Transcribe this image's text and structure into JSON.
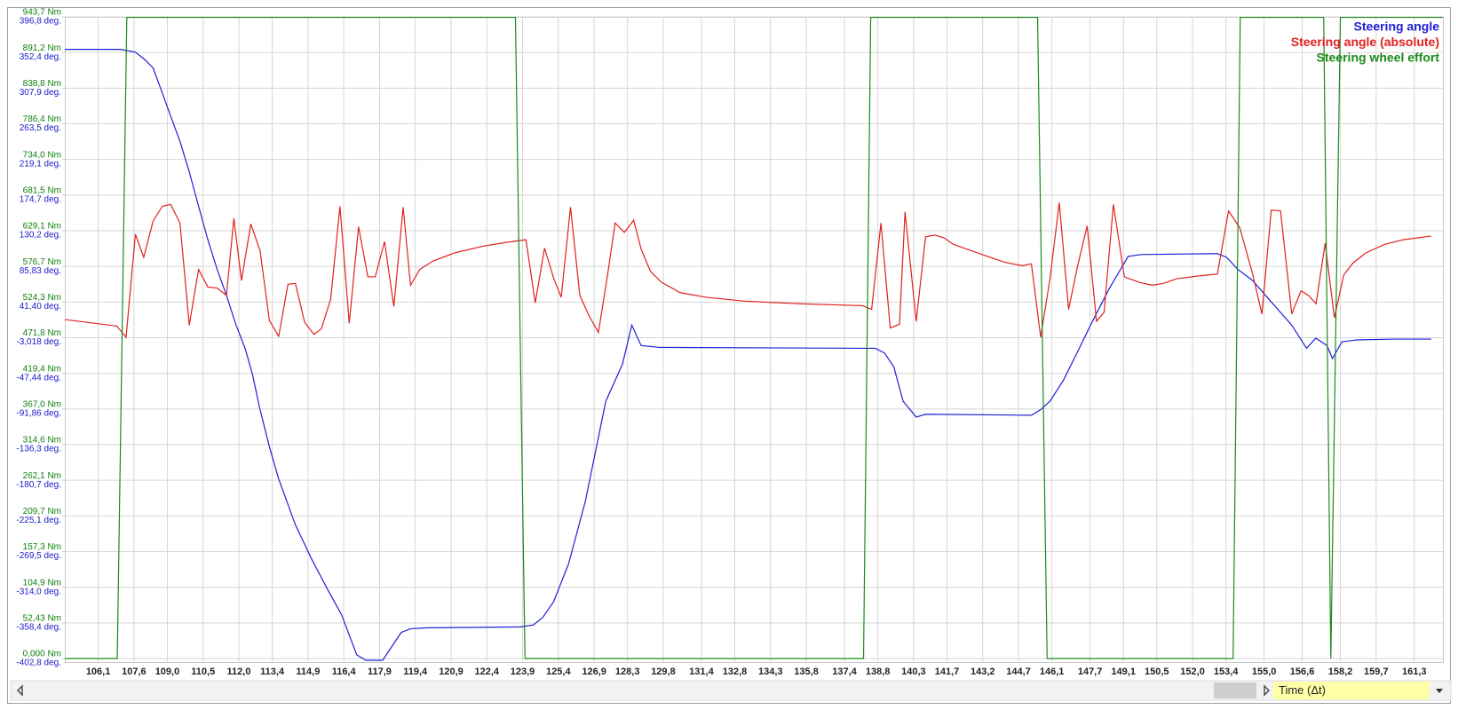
{
  "chart_data": {
    "type": "line",
    "xlabel": "Time (Δt)",
    "xlim": [
      104.7,
      162.5
    ],
    "xticks": [
      {
        "value": 106.1,
        "label": "106,1"
      },
      {
        "value": 107.6,
        "label": "107,6"
      },
      {
        "value": 109.0,
        "label": "109,0"
      },
      {
        "value": 110.5,
        "label": "110,5"
      },
      {
        "value": 112.0,
        "label": "112,0"
      },
      {
        "value": 113.4,
        "label": "113,4"
      },
      {
        "value": 114.9,
        "label": "114,9"
      },
      {
        "value": 116.4,
        "label": "116,4"
      },
      {
        "value": 117.9,
        "label": "117,9"
      },
      {
        "value": 119.4,
        "label": "119,4"
      },
      {
        "value": 120.9,
        "label": "120,9"
      },
      {
        "value": 122.4,
        "label": "122,4"
      },
      {
        "value": 123.9,
        "label": "123,9"
      },
      {
        "value": 125.4,
        "label": "125,4"
      },
      {
        "value": 126.9,
        "label": "126,9"
      },
      {
        "value": 128.3,
        "label": "128,3"
      },
      {
        "value": 129.8,
        "label": "129,8"
      },
      {
        "value": 131.4,
        "label": "131,4"
      },
      {
        "value": 132.8,
        "label": "132,8"
      },
      {
        "value": 134.3,
        "label": "134,3"
      },
      {
        "value": 135.8,
        "label": "135,8"
      },
      {
        "value": 137.4,
        "label": "137,4"
      },
      {
        "value": 138.8,
        "label": "138,8"
      },
      {
        "value": 140.3,
        "label": "140,3"
      },
      {
        "value": 141.7,
        "label": "141,7"
      },
      {
        "value": 143.2,
        "label": "143,2"
      },
      {
        "value": 144.7,
        "label": "144,7"
      },
      {
        "value": 146.1,
        "label": "146,1"
      },
      {
        "value": 147.7,
        "label": "147,7"
      },
      {
        "value": 149.1,
        "label": "149,1"
      },
      {
        "value": 150.5,
        "label": "150,5"
      },
      {
        "value": 152.0,
        "label": "152,0"
      },
      {
        "value": 153.4,
        "label": "153,4"
      },
      {
        "value": 155.0,
        "label": "155,0"
      },
      {
        "value": 156.6,
        "label": "156,6"
      },
      {
        "value": 158.2,
        "label": "158,2"
      },
      {
        "value": 159.7,
        "label": "159,7"
      },
      {
        "value": 161.3,
        "label": "161,3"
      }
    ],
    "ylim": [
      -402.8,
      396.8
    ],
    "yticks": [
      {
        "value": 396.8,
        "label": "396,8 deg."
      },
      {
        "value": 352.4,
        "label": "352,4 deg."
      },
      {
        "value": 307.9,
        "label": "307,9 deg."
      },
      {
        "value": 263.5,
        "label": "263,5 deg."
      },
      {
        "value": 219.1,
        "label": "219,1 deg."
      },
      {
        "value": 174.7,
        "label": "174,7 deg."
      },
      {
        "value": 130.2,
        "label": "130,2 deg."
      },
      {
        "value": 85.83,
        "label": "85,83 deg."
      },
      {
        "value": 41.4,
        "label": "41,40 deg."
      },
      {
        "value": -3.018,
        "label": "-3,018 deg."
      },
      {
        "value": -47.44,
        "label": "-47,44 deg."
      },
      {
        "value": -91.86,
        "label": "-91,86 deg."
      },
      {
        "value": -136.3,
        "label": "-136,3 deg."
      },
      {
        "value": -180.7,
        "label": "-180,7 deg."
      },
      {
        "value": -225.1,
        "label": "-225,1 deg."
      },
      {
        "value": -269.5,
        "label": "-269,5 deg."
      },
      {
        "value": -314.0,
        "label": "-314,0 deg."
      },
      {
        "value": -358.4,
        "label": "-358,4 deg."
      },
      {
        "value": -402.8,
        "label": "-402,8 deg."
      }
    ],
    "y2lim": [
      0,
      943.7
    ],
    "y2ticks": [
      {
        "value": 943.7,
        "label": "943,7 Nm"
      },
      {
        "value": 891.2,
        "label": "891,2 Nm"
      },
      {
        "value": 838.8,
        "label": "838,8 Nm"
      },
      {
        "value": 786.4,
        "label": "786,4 Nm"
      },
      {
        "value": 734.0,
        "label": "734,0 Nm"
      },
      {
        "value": 681.5,
        "label": "681,5 Nm"
      },
      {
        "value": 629.1,
        "label": "629,1 Nm"
      },
      {
        "value": 576.7,
        "label": "576,7 Nm"
      },
      {
        "value": 524.3,
        "label": "524,3 Nm"
      },
      {
        "value": 471.8,
        "label": "471,8 Nm"
      },
      {
        "value": 419.4,
        "label": "419,4 Nm"
      },
      {
        "value": 367.0,
        "label": "367,0 Nm"
      },
      {
        "value": 314.6,
        "label": "314,6 Nm"
      },
      {
        "value": 262.1,
        "label": "262,1 Nm"
      },
      {
        "value": 209.7,
        "label": "209,7 Nm"
      },
      {
        "value": 157.3,
        "label": "157,3 Nm"
      },
      {
        "value": 104.9,
        "label": "104,9 Nm"
      },
      {
        "value": 52.43,
        "label": "52,43 Nm"
      },
      {
        "value": 0,
        "label": "0,000 Nm"
      }
    ],
    "grid": true,
    "legend": "upper right",
    "series": [
      {
        "name": "Steering angle",
        "color": "#1f1fd6",
        "axis": "y",
        "x": [
          104.7,
          107.04,
          107.66,
          108.01,
          108.4,
          108.79,
          109.14,
          109.53,
          109.92,
          110.31,
          110.7,
          111.09,
          111.48,
          111.87,
          112.26,
          112.57,
          112.88,
          113.27,
          113.66,
          114.37,
          115.07,
          115.77,
          116.31,
          116.94,
          117.33,
          118.03,
          118.81,
          119.2,
          119.9,
          123.8,
          124.35,
          124.74,
          125.2,
          125.83,
          126.53,
          127.39,
          128.09,
          128.48,
          128.87,
          129.65,
          138.23,
          138.69,
          139.08,
          139.47,
          139.86,
          140.41,
          140.8,
          145.24,
          145.63,
          146.02,
          146.57,
          147.19,
          147.82,
          148.52,
          149.3,
          149.84,
          153.04,
          153.43,
          153.9,
          154.52,
          155.3,
          156.16,
          156.78,
          157.17,
          157.64,
          157.87,
          158.26,
          158.89,
          160.45,
          162.01
        ],
        "values": [
          356.3,
          356.3,
          352.8,
          344.7,
          333.2,
          301.9,
          273.0,
          241.8,
          203.6,
          160.8,
          119.1,
          82.1,
          49.7,
          13.8,
          -16.2,
          -48.6,
          -91.5,
          -137.7,
          -178.2,
          -236.1,
          -280.0,
          -319.4,
          -348.3,
          -398.1,
          -405,
          -405,
          -370.3,
          -365.7,
          -364.5,
          -363.4,
          -361.0,
          -351.8,
          -332.1,
          -284.7,
          -207.2,
          -82.2,
          -35.9,
          12.7,
          -12.8,
          -15.1,
          -16.2,
          -16.2,
          -22.0,
          -39.4,
          -82.2,
          -101.9,
          -98.4,
          -99.6,
          -92.6,
          -82.2,
          -56.7,
          -19.7,
          18.5,
          59.0,
          98.3,
          100.6,
          101.8,
          97.1,
          82.1,
          68.2,
          41.6,
          12.7,
          -16.2,
          -3.5,
          -12.8,
          -29.0,
          -8.2,
          -5.8,
          -4.7,
          -4.7
        ]
      },
      {
        "name": "Steering angle (absolute)",
        "color": "#e02020",
        "axis": "y",
        "x": [
          104.7,
          106.88,
          107.27,
          107.66,
          108.01,
          108.4,
          108.79,
          109.14,
          109.53,
          109.92,
          110.31,
          110.7,
          111.09,
          111.48,
          111.79,
          112.11,
          112.5,
          112.89,
          113.28,
          113.67,
          114.06,
          114.37,
          114.76,
          115.15,
          115.46,
          115.85,
          116.24,
          116.63,
          117.02,
          117.41,
          117.72,
          118.11,
          118.5,
          118.89,
          119.2,
          119.59,
          120.14,
          121.07,
          122.24,
          123.18,
          124.04,
          124.43,
          124.82,
          125.21,
          125.52,
          125.91,
          126.3,
          126.69,
          127.08,
          127.47,
          127.78,
          128.17,
          128.56,
          128.87,
          129.26,
          129.73,
          130.51,
          131.6,
          133.16,
          135.5,
          138.15,
          138.54,
          138.93,
          139.32,
          139.71,
          139.94,
          140.41,
          140.8,
          141.19,
          141.58,
          141.97,
          142.52,
          143.3,
          144.08,
          144.85,
          145.24,
          145.63,
          146.02,
          146.41,
          146.8,
          147.19,
          147.58,
          147.97,
          148.29,
          148.68,
          149.14,
          149.77,
          150.31,
          150.78,
          151.33,
          152.26,
          153.04,
          153.51,
          153.98,
          154.52,
          154.91,
          155.3,
          155.69,
          156.16,
          156.55,
          156.86,
          157.18,
          157.56,
          157.95,
          158.34,
          158.73,
          159.28,
          160.06,
          160.84,
          162.01
        ],
        "values": [
          19.6,
          11.5,
          -2.4,
          126.0,
          97.1,
          142.2,
          160.7,
          163.1,
          139.9,
          12.6,
          82.1,
          60.1,
          58.9,
          49.7,
          145.7,
          68.2,
          138.8,
          105.2,
          18.4,
          -1.2,
          63.6,
          64.7,
          16.1,
          1.1,
          8.0,
          45.0,
          160.7,
          15.0,
          135.3,
          72.8,
          72.8,
          116.8,
          35.8,
          159.6,
          62.4,
          82.1,
          92.5,
          102.9,
          111.0,
          115.6,
          119.1,
          40.4,
          108.7,
          70.5,
          47.4,
          159.6,
          49.7,
          24.2,
          3.4,
          76.3,
          139.9,
          128.3,
          143.4,
          107.5,
          79.8,
          65.9,
          53.1,
          47.4,
          42.7,
          39.3,
          36.9,
          32.3,
          139.9,
          9.2,
          13.8,
          153.8,
          17.3,
          122.6,
          124.9,
          121.4,
          113.3,
          107.5,
          99.4,
          91.3,
          86.7,
          89.0,
          -2.4,
          70.5,
          165.4,
          32.3,
          87.9,
          136.4,
          17.3,
          28.8,
          163.1,
          72.8,
          65.9,
          62.4,
          64.7,
          70.5,
          74.0,
          76.3,
          155.0,
          134.1,
          76.3,
          26.5,
          156.1,
          155.0,
          26.5,
          55.5,
          49.7,
          39.3,
          114.5,
          21.9,
          75.1,
          90.2,
          102.9,
          113.3,
          119.1,
          123.7
        ]
      },
      {
        "name": "Steering wheel effort",
        "color": "#1a8a1a",
        "axis": "y2",
        "x": [
          104.7,
          106.9,
          107.3,
          123.6,
          124.0,
          138.2,
          138.5,
          145.5,
          145.9,
          153.7,
          154.0,
          157.5,
          157.8,
          158.2,
          162.5
        ],
        "values": [
          0,
          0,
          943,
          943,
          0,
          0,
          943,
          943,
          0,
          0,
          943,
          943,
          0,
          943,
          943
        ]
      }
    ]
  }
}
